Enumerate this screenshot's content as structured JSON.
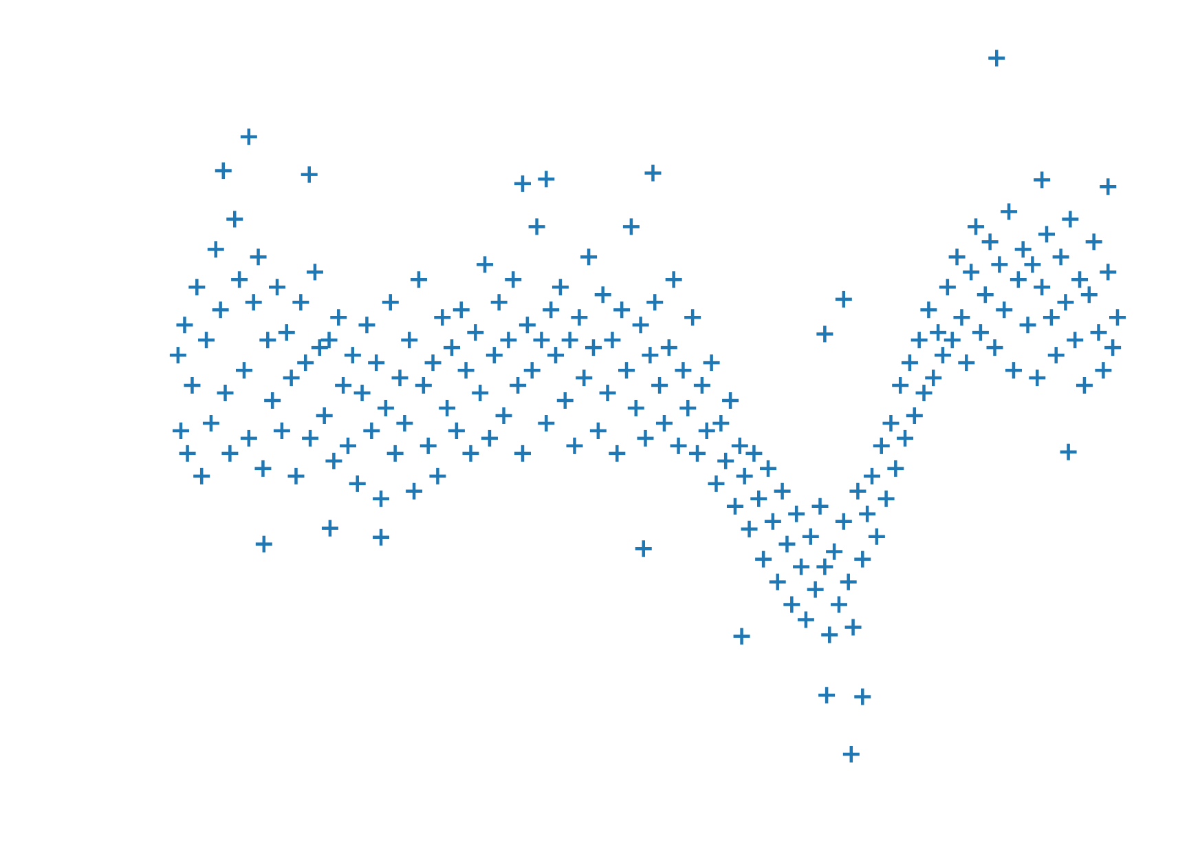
{
  "chart_data": {
    "type": "scatter",
    "marker": "+",
    "color": "#1f77b4",
    "xlim": [
      0,
      100
    ],
    "ylim": [
      -5.5,
      5.5
    ],
    "x": [
      0.5,
      0.8,
      1.2,
      1.5,
      2,
      2.5,
      3,
      3.5,
      4,
      4.5,
      5,
      5.5,
      6,
      6.5,
      7,
      7.5,
      8,
      8.5,
      9,
      9.5,
      10,
      10.5,
      11,
      11.5,
      12,
      12.5,
      13,
      13.5,
      14,
      14.5,
      15,
      15.5,
      16,
      16.5,
      17,
      17.5,
      18,
      18.5,
      19,
      19.5,
      20,
      20.5,
      21,
      21.5,
      22,
      22.5,
      23,
      23.5,
      24,
      24.5,
      25,
      25.5,
      26,
      26.5,
      27,
      27.5,
      28,
      28.5,
      29,
      29.5,
      30,
      30.5,
      31,
      31.5,
      32,
      32.5,
      33,
      33.5,
      34,
      34.5,
      35,
      35.5,
      36,
      36.5,
      37,
      37.5,
      38,
      38.5,
      39,
      39.5,
      40,
      40.5,
      41,
      41.5,
      42,
      42.5,
      43,
      43.5,
      44,
      44.5,
      45,
      45.5,
      46,
      46.5,
      47,
      47.5,
      48,
      48.5,
      49,
      49.5,
      50,
      50.5,
      51,
      51.5,
      52,
      52.5,
      53,
      53.5,
      54,
      54.5,
      55,
      55.5,
      56,
      56.5,
      57,
      57.5,
      58,
      58.5,
      59,
      59.5,
      60,
      60.5,
      61,
      61.5,
      62,
      62.5,
      63,
      63.5,
      64,
      64.5,
      65,
      65.5,
      66,
      66.5,
      67,
      67.5,
      68,
      68.5,
      69,
      69.5,
      70,
      70.5,
      71,
      71.5,
      72,
      72.5,
      73,
      73.5,
      74,
      74.5,
      75,
      75.5,
      76,
      76.5,
      77,
      77.5,
      78,
      78.5,
      79,
      79.5,
      80,
      80.5,
      81,
      81.5,
      82,
      82.5,
      83,
      83.5,
      84,
      84.5,
      85,
      85.5,
      86,
      86.5,
      87,
      87.5,
      88,
      88.5,
      89,
      89.5,
      90,
      90.5,
      91,
      91.5,
      92,
      92.5,
      93,
      93.5,
      94,
      94.5,
      95,
      95.5,
      96,
      96.5,
      97,
      97.5,
      98,
      98.5,
      99,
      99.5,
      100,
      87.2,
      8,
      5.3,
      14.4,
      50.8,
      37,
      39.5,
      71.8,
      69.2,
      73,
      60.2,
      9.6,
      16.6,
      22,
      49.8,
      94.8,
      71,
      69,
      92,
      99
    ],
    "values": [
      0.7,
      -0.3,
      1.1,
      -0.6,
      0.3,
      1.6,
      -0.9,
      0.9,
      -0.2,
      2.1,
      1.3,
      0.2,
      -0.6,
      2.5,
      1.7,
      0.5,
      -0.4,
      1.4,
      2.0,
      -0.8,
      0.9,
      0.1,
      1.6,
      -0.3,
      1.0,
      0.4,
      -0.9,
      1.4,
      0.6,
      -0.4,
      1.8,
      0.8,
      -0.1,
      0.9,
      -0.7,
      1.2,
      0.3,
      -0.5,
      0.7,
      -1.0,
      0.2,
      1.1,
      -0.3,
      0.6,
      -1.2,
      0.0,
      1.4,
      -0.6,
      0.4,
      -0.2,
      0.9,
      -1.1,
      1.7,
      0.3,
      -0.5,
      0.6,
      -0.9,
      1.2,
      0.0,
      0.8,
      -0.3,
      1.3,
      0.5,
      -0.6,
      1.0,
      0.2,
      1.9,
      -0.4,
      0.7,
      1.4,
      -0.1,
      0.9,
      1.7,
      0.3,
      -0.6,
      1.1,
      0.5,
      2.4,
      0.9,
      -0.2,
      1.3,
      0.7,
      1.6,
      0.1,
      0.9,
      -0.5,
      1.2,
      0.4,
      2.0,
      0.8,
      -0.3,
      1.5,
      0.2,
      0.9,
      -0.6,
      1.3,
      0.5,
      2.4,
      0.0,
      1.1,
      -0.4,
      0.7,
      1.4,
      0.3,
      -0.2,
      0.8,
      1.7,
      -0.5,
      0.5,
      0.0,
      1.2,
      -0.6,
      0.3,
      -0.3,
      0.6,
      -1.0,
      -0.2,
      -0.7,
      0.1,
      -1.3,
      -0.5,
      -0.9,
      -1.6,
      -0.6,
      -1.2,
      -2.0,
      -0.8,
      -1.5,
      -2.3,
      -1.1,
      -1.8,
      -2.6,
      -1.4,
      -2.1,
      -2.8,
      -1.7,
      -2.4,
      -1.3,
      -2.1,
      -3.0,
      -1.9,
      -2.6,
      -1.5,
      -2.3,
      -2.9,
      -1.1,
      -2.0,
      -1.4,
      -0.9,
      -1.7,
      -0.5,
      -1.2,
      -0.2,
      -0.8,
      0.3,
      -0.4,
      0.6,
      -0.1,
      0.9,
      0.2,
      1.3,
      0.4,
      1.0,
      0.7,
      1.6,
      0.9,
      2.0,
      1.2,
      0.6,
      1.8,
      2.4,
      1.0,
      1.5,
      2.2,
      0.8,
      1.9,
      1.3,
      2.6,
      0.5,
      1.7,
      2.1,
      1.1,
      1.9,
      0.4,
      1.6,
      2.3,
      1.2,
      0.7,
      2.0,
      1.4,
      2.5,
      0.9,
      1.7,
      0.3,
      1.5,
      2.2,
      1.0,
      0.5,
      1.8,
      0.8,
      1.2,
      4.63,
      3.59,
      3.14,
      3.09,
      3.11,
      2.97,
      3.03,
      -4.58,
      -3.8,
      -3.82,
      -3.02,
      -1.8,
      -1.59,
      -1.71,
      -1.86,
      -0.58,
      1.44,
      0.98,
      3.02,
      2.93
    ]
  }
}
